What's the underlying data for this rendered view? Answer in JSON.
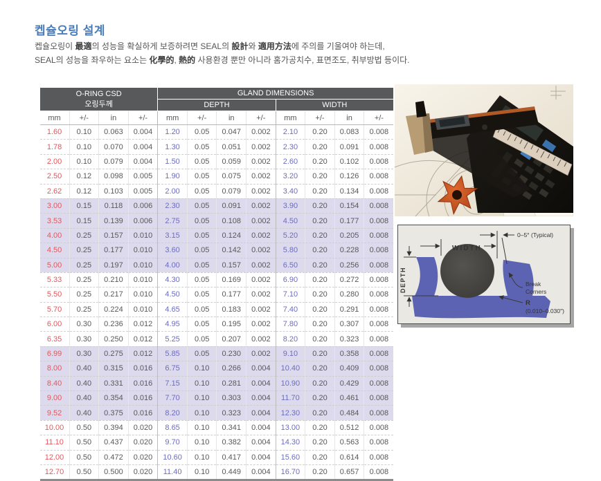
{
  "page": {
    "title": "켑슐오링 설계",
    "intro": {
      "line1": [
        {
          "t": "켑슐오링이 ",
          "b": false
        },
        {
          "t": "最適",
          "b": true
        },
        {
          "t": "의 성능을 확실하게 보증하려면 SEAL의 ",
          "b": false
        },
        {
          "t": "設計",
          "b": true
        },
        {
          "t": "와 ",
          "b": false
        },
        {
          "t": "適用方法",
          "b": true
        },
        {
          "t": "에 주의를 기울여야 하는데,",
          "b": false
        }
      ],
      "line2": [
        {
          "t": "SEAL의 성능을 좌우하는 요소는 ",
          "b": false
        },
        {
          "t": "化學的",
          "b": true
        },
        {
          "t": ", ",
          "b": false
        },
        {
          "t": "熱的",
          "b": true
        },
        {
          "t": " 사용환경 뿐만 아니라 홈가공치수, 표면조도, 취부방법 등이다.",
          "b": false
        }
      ]
    }
  },
  "table": {
    "headers": {
      "oring": "O-RING CSD",
      "oring_sub": "오링두께",
      "gland": "GLAND DIMENSIONS",
      "depth": "DEPTH",
      "width": "WIDTH"
    },
    "unit_headers": [
      "mm",
      "+/-",
      "in",
      "+/-",
      "mm",
      "+/-",
      "in",
      "+/-",
      "mm",
      "+/-",
      "in",
      "+/-"
    ],
    "rows": [
      {
        "highlight": false,
        "cells": [
          "1.60",
          "0.10",
          "0.063",
          "0.004",
          "1.20",
          "0.05",
          "0.047",
          "0.002",
          "2.10",
          "0.20",
          "0.083",
          "0.008"
        ]
      },
      {
        "highlight": false,
        "cells": [
          "1.78",
          "0.10",
          "0.070",
          "0.004",
          "1.30",
          "0.05",
          "0.051",
          "0.002",
          "2.30",
          "0.20",
          "0.091",
          "0.008"
        ]
      },
      {
        "highlight": false,
        "cells": [
          "2.00",
          "0.10",
          "0.079",
          "0.004",
          "1.50",
          "0.05",
          "0.059",
          "0.002",
          "2.60",
          "0.20",
          "0.102",
          "0.008"
        ]
      },
      {
        "highlight": false,
        "cells": [
          "2.50",
          "0.12",
          "0.098",
          "0.005",
          "1.90",
          "0.05",
          "0.075",
          "0.002",
          "3.20",
          "0.20",
          "0.126",
          "0.008"
        ]
      },
      {
        "highlight": false,
        "cells": [
          "2.62",
          "0.12",
          "0.103",
          "0.005",
          "2.00",
          "0.05",
          "0.079",
          "0.002",
          "3.40",
          "0.20",
          "0.134",
          "0.008"
        ]
      },
      {
        "highlight": true,
        "cells": [
          "3.00",
          "0.15",
          "0.118",
          "0.006",
          "2.30",
          "0.05",
          "0.091",
          "0.002",
          "3.90",
          "0.20",
          "0.154",
          "0.008"
        ]
      },
      {
        "highlight": true,
        "cells": [
          "3.53",
          "0.15",
          "0.139",
          "0.006",
          "2.75",
          "0.05",
          "0.108",
          "0.002",
          "4.50",
          "0.20",
          "0.177",
          "0.008"
        ]
      },
      {
        "highlight": true,
        "cells": [
          "4.00",
          "0.25",
          "0.157",
          "0.010",
          "3.15",
          "0.05",
          "0.124",
          "0.002",
          "5.20",
          "0.20",
          "0.205",
          "0.008"
        ]
      },
      {
        "highlight": true,
        "cells": [
          "4.50",
          "0.25",
          "0.177",
          "0.010",
          "3.60",
          "0.05",
          "0.142",
          "0.002",
          "5.80",
          "0.20",
          "0.228",
          "0.008"
        ]
      },
      {
        "highlight": true,
        "cells": [
          "5.00",
          "0.25",
          "0.197",
          "0.010",
          "4.00",
          "0.05",
          "0.157",
          "0.002",
          "6.50",
          "0.20",
          "0.256",
          "0.008"
        ]
      },
      {
        "highlight": false,
        "cells": [
          "5.33",
          "0.25",
          "0.210",
          "0.010",
          "4.30",
          "0.05",
          "0.169",
          "0.002",
          "6.90",
          "0.20",
          "0.272",
          "0.008"
        ]
      },
      {
        "highlight": false,
        "cells": [
          "5.50",
          "0.25",
          "0.217",
          "0.010",
          "4.50",
          "0.05",
          "0.177",
          "0.002",
          "7.10",
          "0.20",
          "0.280",
          "0.008"
        ]
      },
      {
        "highlight": false,
        "cells": [
          "5.70",
          "0.25",
          "0.224",
          "0.010",
          "4.65",
          "0.05",
          "0.183",
          "0.002",
          "7.40",
          "0.20",
          "0.291",
          "0.008"
        ]
      },
      {
        "highlight": false,
        "cells": [
          "6.00",
          "0.30",
          "0.236",
          "0.012",
          "4.95",
          "0.05",
          "0.195",
          "0.002",
          "7.80",
          "0.20",
          "0.307",
          "0.008"
        ]
      },
      {
        "highlight": false,
        "cells": [
          "6.35",
          "0.30",
          "0.250",
          "0.012",
          "5.25",
          "0.05",
          "0.207",
          "0.002",
          "8.20",
          "0.20",
          "0.323",
          "0.008"
        ]
      },
      {
        "highlight": true,
        "cells": [
          "6.99",
          "0.30",
          "0.275",
          "0.012",
          "5.85",
          "0.05",
          "0.230",
          "0.002",
          "9.10",
          "0.20",
          "0.358",
          "0.008"
        ]
      },
      {
        "highlight": true,
        "cells": [
          "8.00",
          "0.40",
          "0.315",
          "0.016",
          "6.75",
          "0.10",
          "0.266",
          "0.004",
          "10.40",
          "0.20",
          "0.409",
          "0.008"
        ]
      },
      {
        "highlight": true,
        "cells": [
          "8.40",
          "0.40",
          "0.331",
          "0.016",
          "7.15",
          "0.10",
          "0.281",
          "0.004",
          "10.90",
          "0.20",
          "0.429",
          "0.008"
        ]
      },
      {
        "highlight": true,
        "cells": [
          "9.00",
          "0.40",
          "0.354",
          "0.016",
          "7.70",
          "0.10",
          "0.303",
          "0.004",
          "11.70",
          "0.20",
          "0.461",
          "0.008"
        ]
      },
      {
        "highlight": true,
        "cells": [
          "9.52",
          "0.40",
          "0.375",
          "0.016",
          "8.20",
          "0.10",
          "0.323",
          "0.004",
          "12.30",
          "0.20",
          "0.484",
          "0.008"
        ]
      },
      {
        "highlight": false,
        "cells": [
          "10.00",
          "0.50",
          "0.394",
          "0.020",
          "8.65",
          "0.10",
          "0.341",
          "0.004",
          "13.00",
          "0.20",
          "0.512",
          "0.008"
        ]
      },
      {
        "highlight": false,
        "cells": [
          "11.10",
          "0.50",
          "0.437",
          "0.020",
          "9.70",
          "0.10",
          "0.382",
          "0.004",
          "14.30",
          "0.20",
          "0.563",
          "0.008"
        ]
      },
      {
        "highlight": false,
        "cells": [
          "12.00",
          "0.50",
          "0.472",
          "0.020",
          "10.60",
          "0.10",
          "0.417",
          "0.004",
          "15.60",
          "0.20",
          "0.614",
          "0.008"
        ]
      },
      {
        "highlight": false,
        "cells": [
          "12.70",
          "0.50",
          "0.500",
          "0.020",
          "11.40",
          "0.10",
          "0.449",
          "0.004",
          "16.70",
          "0.20",
          "0.657",
          "0.008"
        ]
      }
    ]
  },
  "diagram": {
    "width_label": "WIDTH",
    "depth_label": "DEPTH",
    "angle_label": "0–5° (Typical)",
    "break_line1": "Break",
    "break_line2": "Corners",
    "r_label": "R",
    "r_value": "(0.010–0.030\")"
  },
  "colors": {
    "title": "#4a7cba",
    "header_bg": "#58595b",
    "row_highlight": "#dcdaec",
    "oring_mm_text": "#e4575c",
    "gland_mm_text": "#6b6dc0",
    "body_text": "#555555",
    "diagram_groove": "#5c63b2"
  }
}
